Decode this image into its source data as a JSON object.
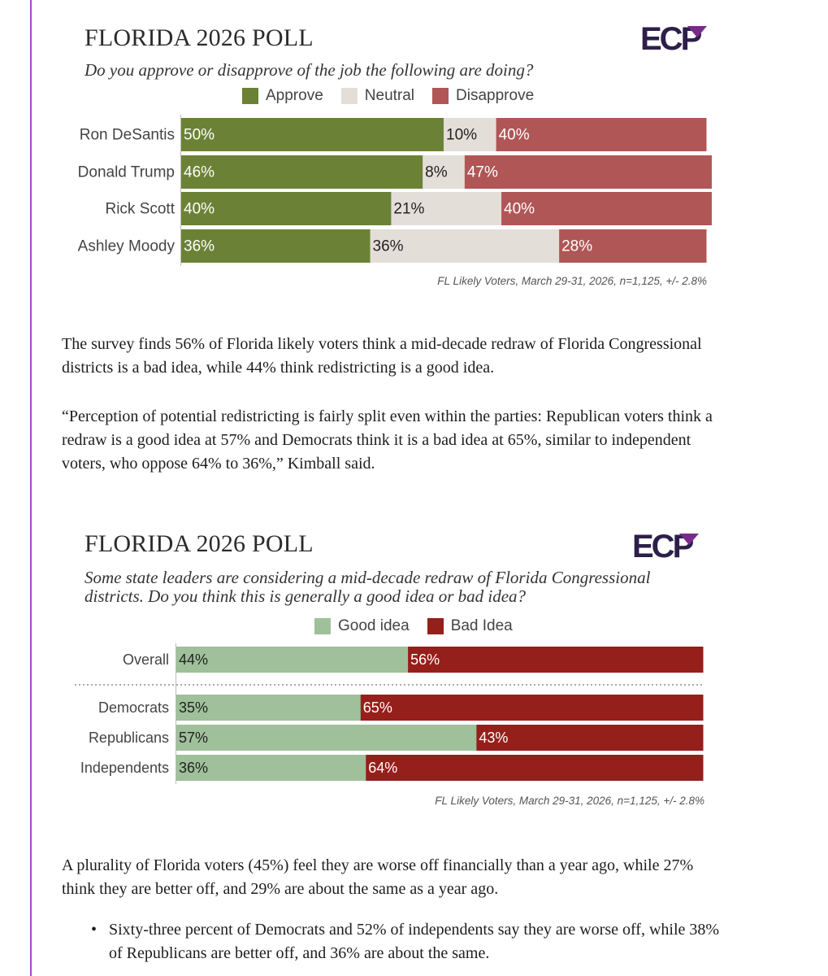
{
  "chart1": {
    "title": "FLORIDA 2026 POLL",
    "question": "Do you approve or disapprove of the job the following are doing?",
    "source": "FL Likely Voters, March 29-31, 2026, n=1,125, +/- 2.8%",
    "logo_text": "ECP"
  },
  "chart2": {
    "title": "FLORIDA 2026 POLL",
    "question_line1": "Some state leaders are considering a mid-decade redraw of Florida Congressional",
    "question_line2": "districts. Do you think this is generally a good idea or bad idea?",
    "source": "FL Likely Voters, March 29-31, 2026, n=1,125, +/- 2.8%",
    "logo_text": "ECP"
  },
  "text": {
    "para1": "The survey finds 56% of Florida likely voters think a mid-decade redraw of Florida Congressional districts is a bad idea, while 44% think redistricting is a good idea.",
    "para2": "“Perception of potential redistricting is fairly split even within the parties: Republican voters think a redraw is a good idea at 57% and Democrats think it is a bad idea at 65%, similar to independent voters, who oppose 64% to 36%,” Kimball said.",
    "para3": "A plurality of Florida voters (45%) feel they are worse off financially than a year ago, while 27% think they are better off, and 29% are about the same as a year ago.",
    "bullet1": "Sixty-three percent of Democrats and 52% of independents say they are worse off, while 38% of Republicans are better off, and 36% are about the same."
  },
  "chart_data": [
    {
      "type": "bar",
      "orientation": "horizontal",
      "stacked": true,
      "title": "FLORIDA 2026 POLL",
      "subtitle": "Do you approve or disapprove of the job the following are doing?",
      "categories": [
        "Ron DeSantis",
        "Donald Trump",
        "Rick Scott",
        "Ashley Moody"
      ],
      "series": [
        {
          "name": "Approve",
          "color": "#6b8236",
          "label_color": "#ffffff",
          "values": [
            50,
            46,
            40,
            36
          ]
        },
        {
          "name": "Neutral",
          "color": "#e4ded8",
          "label_color": "#222222",
          "values": [
            10,
            8,
            21,
            36
          ]
        },
        {
          "name": "Disapprove",
          "color": "#b05656",
          "label_color": "#ffffff",
          "values": [
            40,
            47,
            40,
            28
          ]
        }
      ],
      "xlim": [
        0,
        100
      ],
      "legend": "top-center",
      "note": "FL Likely Voters, March 29-31, 2026, n=1,125, +/- 2.8%"
    },
    {
      "type": "bar",
      "orientation": "horizontal",
      "stacked": true,
      "title": "FLORIDA 2026 POLL",
      "subtitle": "Some state leaders are considering a mid-decade redraw of Florida Congressional districts. Do you think this is generally a good idea or bad idea?",
      "categories": [
        "Overall",
        "Democrats",
        "Republicans",
        "Independents"
      ],
      "series": [
        {
          "name": "Good idea",
          "color": "#9fc09a",
          "label_color": "#222222",
          "values": [
            44,
            35,
            57,
            36
          ]
        },
        {
          "name": "Bad Idea",
          "color": "#951f1b",
          "label_color": "#ffffff",
          "values": [
            56,
            65,
            43,
            64
          ]
        }
      ],
      "xlim": [
        0,
        100
      ],
      "legend": "top-center",
      "note": "FL Likely Voters, March 29-31, 2026, n=1,125, +/- 2.8%"
    }
  ]
}
